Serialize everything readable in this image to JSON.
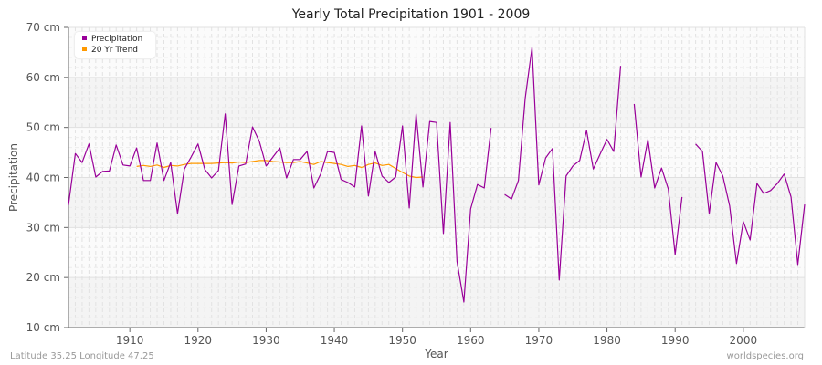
{
  "title": "Yearly Total Precipitation 1901 - 2009",
  "footer": {
    "location": "Latitude 35.25 Longitude 47.25",
    "source": "worldspecies.org"
  },
  "legend": {
    "items": [
      {
        "label": "Precipitation",
        "color": "#990099"
      },
      {
        "label": "20 Yr Trend",
        "color": "#ff9900"
      }
    ]
  },
  "axes": {
    "xlabel": "Year",
    "ylabel": "Precipitation",
    "yticks": [
      "10 cm",
      "20 cm",
      "30 cm",
      "40 cm",
      "50 cm",
      "60 cm",
      "70 cm"
    ],
    "xticks": [
      "1910",
      "1920",
      "1930",
      "1940",
      "1950",
      "1960",
      "1970",
      "1980",
      "1990",
      "2000"
    ]
  },
  "chart_data": {
    "type": "line",
    "title": "Yearly Total Precipitation 1901 - 2009",
    "xlabel": "Year",
    "ylabel": "Precipitation",
    "ylim": [
      10,
      70
    ],
    "xlim": [
      1901,
      2009
    ],
    "y_unit": "cm",
    "grid": true,
    "legend_position": "top-left",
    "series": [
      {
        "name": "Precipitation",
        "color": "#990099",
        "x": [
          1901,
          1902,
          1903,
          1904,
          1905,
          1906,
          1907,
          1908,
          1909,
          1910,
          1911,
          1912,
          1913,
          1914,
          1915,
          1916,
          1917,
          1918,
          1919,
          1920,
          1921,
          1922,
          1923,
          1924,
          1925,
          1926,
          1927,
          1928,
          1929,
          1930,
          1931,
          1932,
          1933,
          1934,
          1935,
          1936,
          1937,
          1938,
          1939,
          1940,
          1941,
          1942,
          1943,
          1944,
          1945,
          1946,
          1947,
          1948,
          1949,
          1950,
          1951,
          1952,
          1953,
          1954,
          1955,
          1956,
          1957,
          1958,
          1959,
          1960,
          1961,
          1962,
          1963,
          1964,
          1965,
          1966,
          1967,
          1968,
          1969,
          1970,
          1971,
          1972,
          1973,
          1974,
          1975,
          1976,
          1977,
          1978,
          1979,
          1980,
          1981,
          1982,
          1983,
          1984,
          1985,
          1986,
          1987,
          1988,
          1989,
          1990,
          1991,
          1992,
          1993,
          1994,
          1995,
          1996,
          1997,
          1998,
          1999,
          2000,
          2001,
          2002,
          2003,
          2004,
          2005,
          2006,
          2007,
          2008,
          2009
        ],
        "values": [
          34.5,
          44.8,
          43.0,
          46.7,
          40.1,
          41.2,
          41.3,
          46.5,
          42.5,
          42.3,
          45.9,
          39.4,
          39.4,
          46.9,
          39.4,
          43.0,
          32.8,
          41.7,
          44.1,
          46.7,
          41.6,
          39.9,
          41.4,
          52.7,
          34.6,
          42.3,
          42.7,
          50.1,
          47.2,
          42.3,
          44.1,
          45.9,
          39.9,
          43.6,
          43.6,
          45.2,
          37.9,
          40.7,
          45.2,
          45.0,
          39.6,
          39.0,
          38.1,
          50.3,
          36.3,
          45.2,
          40.3,
          39.0,
          40.1,
          50.3,
          33.9,
          52.7,
          38.1,
          51.2,
          51.0,
          28.8,
          51.0,
          23.2,
          15.1,
          33.7,
          38.6,
          37.9,
          49.9,
          null,
          36.6,
          35.7,
          39.4,
          55.8,
          66.0,
          38.5,
          43.9,
          45.8,
          19.5,
          40.3,
          42.3,
          43.4,
          49.4,
          41.7,
          44.7,
          47.6,
          45.2,
          62.3,
          null,
          54.7,
          40.1,
          47.6,
          37.9,
          41.9,
          37.7,
          24.6,
          36.1,
          null,
          46.7,
          45.2,
          32.8,
          43.0,
          40.3,
          34.3,
          22.8,
          31.2,
          27.5,
          38.8,
          36.8,
          37.4,
          38.8,
          40.7,
          36.1,
          22.6,
          34.6
        ]
      },
      {
        "name": "20 Yr Trend",
        "color": "#ff9900",
        "x": [
          1911,
          1912,
          1913,
          1914,
          1915,
          1916,
          1917,
          1918,
          1919,
          1920,
          1921,
          1922,
          1923,
          1924,
          1925,
          1926,
          1927,
          1928,
          1929,
          1930,
          1931,
          1932,
          1933,
          1934,
          1935,
          1936,
          1937,
          1938,
          1939,
          1940,
          1941,
          1942,
          1943,
          1944,
          1945,
          1946,
          1947,
          1948,
          1949,
          1950,
          1951,
          1952,
          1953
        ],
        "values": [
          42.2,
          42.4,
          42.2,
          42.5,
          42.0,
          42.4,
          42.3,
          42.6,
          42.8,
          42.8,
          42.8,
          42.8,
          42.9,
          43.0,
          42.9,
          43.1,
          43.0,
          43.2,
          43.4,
          43.4,
          43.2,
          43.1,
          43.0,
          43.0,
          43.2,
          42.9,
          42.6,
          43.2,
          43.0,
          42.8,
          42.6,
          42.2,
          42.4,
          42.0,
          42.6,
          42.9,
          42.4,
          42.6,
          41.8,
          41.0,
          40.3,
          40.0,
          40.1
        ]
      }
    ]
  }
}
